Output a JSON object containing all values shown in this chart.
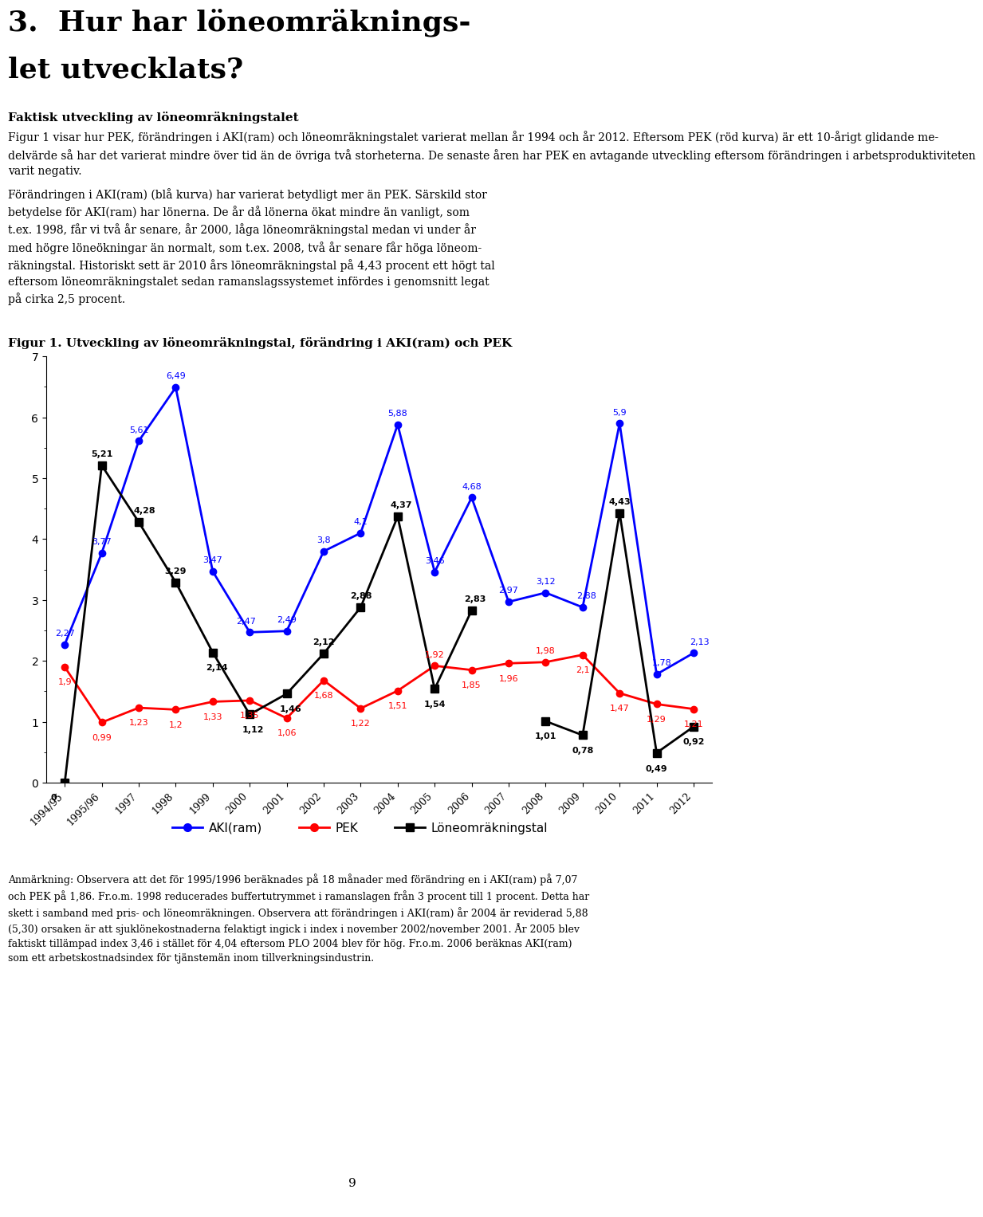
{
  "title_main": "3.  Hur har löneomräkningstalet utvecklats?",
  "subtitle_bold": "Faktisk utveckling av löneomräkningstalet",
  "subtitle_text": "Figur 1 visar hur PEK, förändringen i AKI(ram) och löneomräkningstalet varierat mellan år 1994 och år 2012. Eftersom PEK (röd kurva) är ett 10-årigt glidande medelvärde så har det varierat mindre över tid än de övriga två storheterna. De senaste åren har PEK en avtagande utveckling eftersom förändringen i arbetsproduktiviteten varit negativ.\n\nFörändringen i AKI(ram) (blå kurva) har varierat betydligt mer än PEK. Särskild stor betydelse för AKI(ram) har lönerna. De år då lönerna ökat mindre än vanligt, som t.ex. 1998, får vi två år senare, år 2000, låga löneomräkningstal medan vi under år med högre löneökningar än normalt, som t.ex. 2008, två år senare får höga löneomräkningstal. Historiskt sett är 2010 års löneomräkningstal på 4,43 procent ett högt tal eftersom löneomräkningstalet sedan ramanslagssystemet infördes i genomsnitt legat på cirka 2,5 procent.",
  "fig_title": "Figur 1. Utveckling av löneomräkningstal, förändring i AKI(ram) och PEK",
  "years": [
    "1994/95",
    "1995/96",
    "1997",
    "1998",
    "1999",
    "2000",
    "2001",
    "2002",
    "2003",
    "2004",
    "2005",
    "2006",
    "2007",
    "2008",
    "2009",
    "2010",
    "2011",
    "2012"
  ],
  "aki_ram": [
    2.27,
    3.77,
    5.61,
    6.49,
    3.47,
    2.47,
    2.49,
    3.8,
    4.1,
    5.88,
    3.46,
    4.68,
    2.97,
    3.12,
    2.88,
    5.9,
    1.78,
    2.13
  ],
  "pek": [
    1.9,
    0.99,
    1.23,
    1.2,
    1.33,
    1.35,
    1.06,
    1.68,
    1.22,
    1.51,
    1.92,
    1.85,
    1.96,
    1.98,
    2.1,
    1.47,
    1.29,
    1.21
  ],
  "loneomrakningstal": [
    0.0,
    5.21,
    4.28,
    3.29,
    2.14,
    1.12,
    1.46,
    2.12,
    2.88,
    4.37,
    1.54,
    2.83,
    null,
    1.01,
    0.78,
    4.43,
    0.49,
    0.92
  ],
  "aki_color": "#0000FF",
  "pek_color": "#FF0000",
  "lone_color": "#000000",
  "ylim": [
    0,
    7
  ],
  "yticks": [
    0,
    1,
    2,
    3,
    4,
    5,
    6,
    7
  ],
  "footnote": "Anmärkning: Observera att det för 1995/1996 beräknades på 18 månader med förändring en i AKI(ram) på 7,07 och PEK på 1,86. Fr.o.m. 1998 reducerades buffertutrymmet i ramanslagen från 3 procent till 1 procent. Detta har skett i samband med pris- och löneomräkningen. Observera att förändringen i AKI(ram) år 2004 är reviderad 5,88 (5,30) orsaken är att sjuklönekostnaderna felaktigt ingick i index i november 2002/november 2001. År 2005 blev faktiskt tillämpad index 3,46 i stället för 4,04 eftersom PLO 2004 blev för hög. Fr.o.m. 2006 beräknas AKI(ram) som ett arbetskostnadsindex för tjänstemän inom tillverkningsindustrin.",
  "page_number": "9"
}
